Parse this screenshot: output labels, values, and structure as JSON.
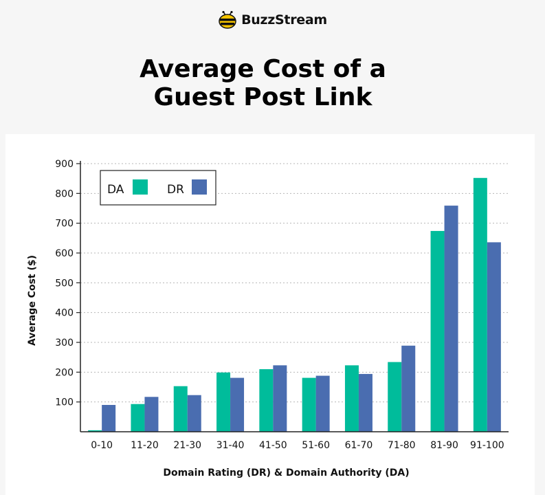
{
  "brand": {
    "name": "BuzzStream",
    "logo_icon": "bee-icon"
  },
  "chart_data": {
    "type": "bar",
    "title": [
      "Average Cost of a",
      "Guest Post Link"
    ],
    "xlabel": "Domain Rating (DR) & Domain Authority (DA)",
    "ylabel": "Average Cost ($)",
    "categories": [
      "0-10",
      "11-20",
      "21-30",
      "31-40",
      "41-50",
      "51-60",
      "61-70",
      "71-80",
      "81-90",
      "91-100"
    ],
    "series": [
      {
        "name": "DA",
        "color": "#00bc9b",
        "values": [
          5,
          93,
          153,
          199,
          210,
          181,
          223,
          234,
          674,
          852
        ]
      },
      {
        "name": "DR",
        "color": "#4a6db0",
        "values": [
          90,
          117,
          123,
          181,
          223,
          188,
          194,
          289,
          759,
          636
        ]
      }
    ],
    "ylim": [
      0,
      900
    ],
    "yticks": [
      100,
      200,
      300,
      400,
      500,
      600,
      700,
      800,
      900
    ],
    "grid": "horizontal-dotted",
    "legend": "top-left"
  }
}
